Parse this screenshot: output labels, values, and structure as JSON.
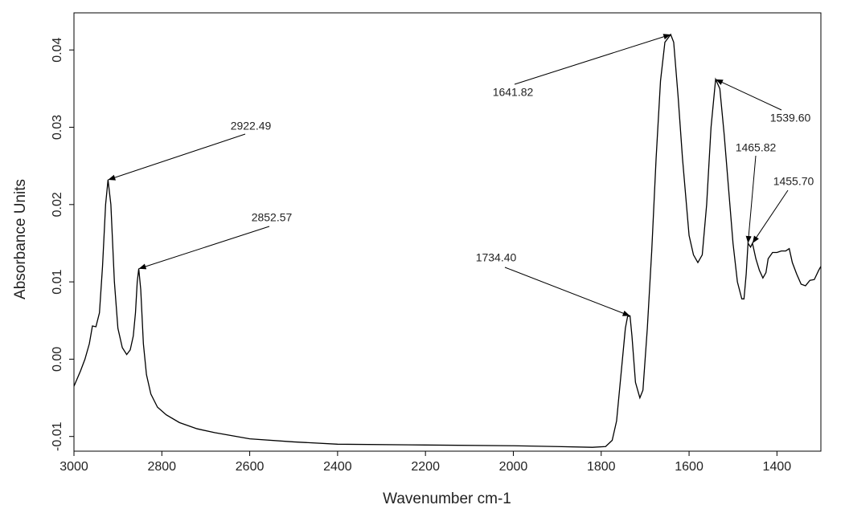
{
  "chart_data": {
    "type": "line",
    "xlabel": "Wavenumber cm-1",
    "ylabel": "Absorbance Units",
    "xlim": [
      3000,
      1300
    ],
    "ylim": [
      -0.0119,
      0.0448
    ],
    "xticks": [
      3000,
      2800,
      2600,
      2400,
      2200,
      2000,
      1800,
      1600,
      1400
    ],
    "yticks": [
      -0.01,
      {
        "value": 0,
        "label": "0.00"
      },
      0.01,
      0.02,
      0.03,
      0.04
    ],
    "color": "#000000",
    "x": [
      3000,
      2985,
      2975,
      2965,
      2958,
      2950,
      2942,
      2935,
      2928,
      2922.49,
      2916,
      2908,
      2900,
      2890,
      2880,
      2872,
      2865,
      2860,
      2856,
      2852.57,
      2848,
      2842,
      2835,
      2825,
      2810,
      2790,
      2760,
      2720,
      2680,
      2600,
      2500,
      2400,
      2200,
      2000,
      1900,
      1820,
      1790,
      1775,
      1765,
      1755,
      1745,
      1740,
      1734.4,
      1730,
      1722,
      1712,
      1705,
      1695,
      1685,
      1675,
      1665,
      1655,
      1641.82,
      1635,
      1625,
      1615,
      1600,
      1590,
      1580,
      1570,
      1560,
      1550,
      1539.6,
      1530,
      1520,
      1510,
      1500,
      1490,
      1480,
      1475,
      1470,
      1465.82,
      1460,
      1455.7,
      1448,
      1440,
      1432,
      1425,
      1420,
      1410,
      1400,
      1390,
      1380,
      1372,
      1365,
      1355,
      1345,
      1335,
      1325,
      1315,
      1305,
      1300
    ],
    "values": [
      -0.0035,
      -0.0015,
      0.0,
      0.002,
      0.0043,
      0.0042,
      0.006,
      0.012,
      0.02,
      0.0232,
      0.02,
      0.01,
      0.004,
      0.0015,
      0.0006,
      0.0012,
      0.003,
      0.006,
      0.01,
      0.0117,
      0.009,
      0.002,
      -0.002,
      -0.0045,
      -0.0062,
      -0.0072,
      -0.0082,
      -0.009,
      -0.0095,
      -0.0103,
      -0.0107,
      -0.011,
      -0.0111,
      -0.0112,
      -0.0113,
      -0.0114,
      -0.0113,
      -0.0105,
      -0.008,
      -0.002,
      0.004,
      0.0055,
      0.0056,
      0.003,
      -0.003,
      -0.005,
      -0.004,
      0.004,
      0.014,
      0.026,
      0.036,
      0.041,
      0.042,
      0.041,
      0.034,
      0.026,
      0.016,
      0.0135,
      0.0125,
      0.0135,
      0.02,
      0.03,
      0.0362,
      0.035,
      0.029,
      0.022,
      0.015,
      0.01,
      0.0078,
      0.0078,
      0.011,
      0.015,
      0.0145,
      0.015,
      0.013,
      0.0115,
      0.0105,
      0.0112,
      0.013,
      0.0138,
      0.0138,
      0.014,
      0.014,
      0.0143,
      0.0125,
      0.011,
      0.0097,
      0.0095,
      0.0102,
      0.0103,
      0.0115,
      0.012
    ],
    "annotations": [
      {
        "label": "2922.49",
        "x": 2922.49,
        "y": 0.0232
      },
      {
        "label": "2852.57",
        "x": 2852.57,
        "y": 0.0117
      },
      {
        "label": "1734.40",
        "x": 1734.4,
        "y": 0.0056
      },
      {
        "label": "1641.82",
        "x": 1641.82,
        "y": 0.042
      },
      {
        "label": "1539.60",
        "x": 1539.6,
        "y": 0.0362
      },
      {
        "label": "1465.82",
        "x": 1465.82,
        "y": 0.015
      },
      {
        "label": "1455.70",
        "x": 1455.7,
        "y": 0.015
      }
    ]
  }
}
